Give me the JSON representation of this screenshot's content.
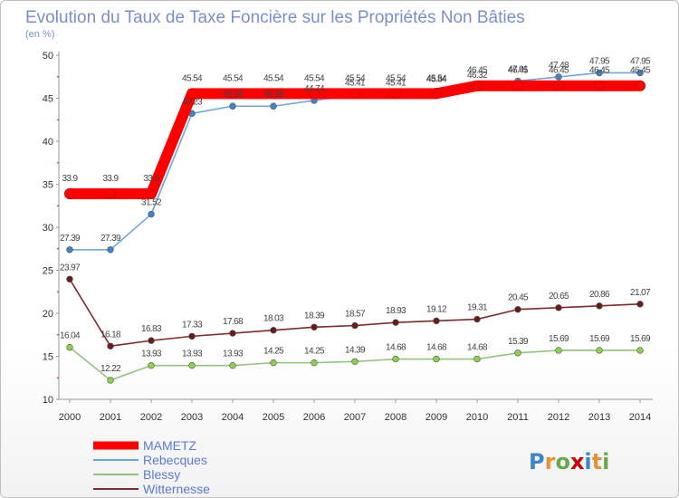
{
  "chart_data": {
    "type": "line",
    "title": "Evolution du Taux de Taxe Foncière sur les Propriétés Non Bâties",
    "subtitle": "(en %)",
    "xlabel": "",
    "ylabel": "",
    "ylim": [
      10,
      50
    ],
    "yticks": [
      10,
      15,
      20,
      25,
      30,
      35,
      40,
      45,
      50
    ],
    "grid": false,
    "x": [
      "2000",
      "2001",
      "2002",
      "2003",
      "2004",
      "2005",
      "2006",
      "2007",
      "2008",
      "2009",
      "2010",
      "2011",
      "2012",
      "2013",
      "2014"
    ],
    "series": [
      {
        "name": "MAMETZ",
        "color": "#ff0000",
        "marker": "#ff0000",
        "values": [
          33.9,
          33.9,
          33.9,
          45.54,
          45.54,
          45.54,
          45.54,
          45.54,
          45.54,
          45.54,
          46.45,
          46.45,
          46.45,
          46.45,
          46.45
        ],
        "labels": [
          "33.9",
          "33.9",
          "33.9",
          "45.54",
          "45.54",
          "45.54",
          "45.54",
          "45.54",
          "45.54",
          "45.54",
          "46.45",
          "46.45",
          "46.45",
          "46.45",
          "46.45"
        ]
      },
      {
        "name": "Rebecques",
        "color": "#6fa8dc",
        "marker": "#3d85c6",
        "values": [
          27.39,
          27.39,
          31.52,
          43.23,
          44.08,
          44.08,
          44.74,
          45.41,
          45.41,
          45.84,
          46.32,
          47.01,
          47.48,
          47.95,
          47.95
        ],
        "labels": [
          "27.39",
          "27.39",
          "31.52",
          "43.23",
          "44.08",
          "44.08",
          "44.74",
          "45.41",
          "45.41",
          "45.84",
          "46.32",
          "47.01",
          "47.48",
          "47.95",
          "47.95"
        ]
      },
      {
        "name": "Blessy",
        "color": "#93c47d",
        "marker": "#8bd149",
        "values": [
          16.04,
          12.22,
          13.93,
          13.93,
          13.93,
          14.25,
          14.25,
          14.39,
          14.68,
          14.68,
          14.68,
          15.39,
          15.69,
          15.69,
          15.69
        ],
        "labels": [
          "16.04",
          "12.22",
          "13.93",
          "13.93",
          "13.93",
          "14.25",
          "14.25",
          "14.39",
          "14.68",
          "14.68",
          "14.68",
          "15.39",
          "15.69",
          "15.69",
          "15.69"
        ]
      },
      {
        "name": "Witternesse",
        "color": "#7f2b2b",
        "marker": "#6b1a1a",
        "values": [
          23.97,
          16.18,
          16.83,
          17.33,
          17.68,
          18.03,
          18.39,
          18.57,
          18.93,
          19.12,
          19.31,
          20.45,
          20.65,
          20.86,
          21.07
        ],
        "labels": [
          "23.97",
          "16.18",
          "16.83",
          "17.33",
          "17.68",
          "18.03",
          "18.39",
          "18.57",
          "18.93",
          "19.12",
          "19.31",
          "20.45",
          "20.65",
          "20.86",
          "21.07"
        ]
      }
    ],
    "legend": {
      "placement": "bottom-left",
      "items": [
        "MAMETZ",
        "Rebecques",
        "Blessy",
        "Witternesse"
      ]
    }
  },
  "logo": {
    "text": "Proxiti",
    "letters": [
      "P",
      "r",
      "o",
      "x",
      "i",
      "t",
      "i"
    ],
    "colors": [
      "#3d85c6",
      "#e69138",
      "#6aa84f",
      "#cc0000",
      "#3d85c6",
      "#e69138",
      "#6aa84f"
    ]
  }
}
